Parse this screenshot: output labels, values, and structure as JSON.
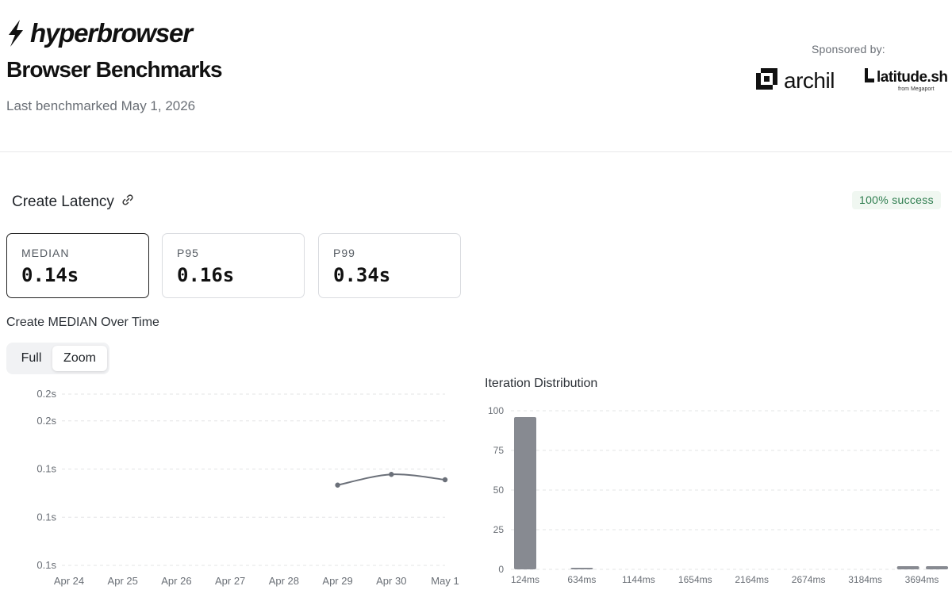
{
  "brand": {
    "name": "hyperbrowser",
    "logo_icon": "lightning-bolt-icon"
  },
  "header": {
    "title": "Browser Benchmarks",
    "last_benchmarked": "Last benchmarked May 1, 2026"
  },
  "sponsors": {
    "label": "Sponsored by:",
    "archil": {
      "name": "archil",
      "icon": "archil-logo-icon"
    },
    "latitude": {
      "name": "latitude.sh",
      "sub": "from Megaport",
      "icon": "latitude-logo-icon"
    }
  },
  "section": {
    "title": "Create Latency",
    "link_icon": "link-icon",
    "success_badge": "100% success",
    "success_color": "#2e7d4f"
  },
  "stats": [
    {
      "label": "MEDIAN",
      "value": "0.14s",
      "active": true
    },
    {
      "label": "P95",
      "value": "0.16s",
      "active": false
    },
    {
      "label": "P99",
      "value": "0.34s",
      "active": false
    }
  ],
  "over_time": {
    "heading": "Create MEDIAN Over Time",
    "toggle": {
      "full": "Full",
      "zoom": "Zoom",
      "selected": "Zoom"
    }
  },
  "distribution": {
    "heading": "Iteration Distribution"
  },
  "chart_data": [
    {
      "type": "line",
      "title": "Create MEDIAN Over Time",
      "categories": [
        "Apr 24",
        "Apr 25",
        "Apr 26",
        "Apr 27",
        "Apr 28",
        "Apr 29",
        "Apr 30",
        "May 1"
      ],
      "y_tick_labels": [
        "0.2s",
        "0.2s",
        "0.1s",
        "0.1s",
        "0.1s"
      ],
      "y_tick_values": [
        0.158,
        0.153,
        0.144,
        0.135,
        0.126
      ],
      "ylim": [
        0.126,
        0.158
      ],
      "series": [
        {
          "values": [
            null,
            null,
            null,
            null,
            null,
            0.141,
            0.143,
            0.142
          ]
        }
      ],
      "grid": true,
      "color": "#6b7079"
    },
    {
      "type": "bar",
      "title": "Iteration Distribution",
      "categories": [
        "124ms",
        "634ms",
        "1144ms",
        "1654ms",
        "2164ms",
        "2674ms",
        "3184ms",
        "3694ms"
      ],
      "tick_values": [
        124,
        634,
        1144,
        1654,
        2164,
        2674,
        3184,
        3694
      ],
      "bars": [
        {
          "x": 124,
          "value": 96
        },
        {
          "x": 634,
          "value": 1
        },
        {
          "x": 3570,
          "value": 2
        },
        {
          "x": 3830,
          "value": 2
        }
      ],
      "yticks": [
        0,
        25,
        50,
        75,
        100
      ],
      "ylim": [
        0,
        100
      ],
      "grid": true,
      "color": "#878a91"
    }
  ]
}
